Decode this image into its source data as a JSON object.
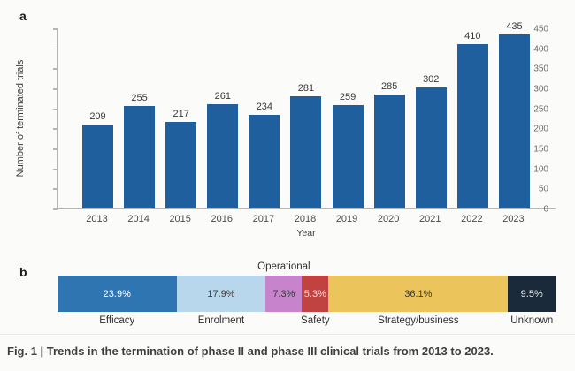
{
  "figure": {
    "panel_a_label": "a",
    "panel_b_label": "b",
    "caption": "Fig. 1 | Trends in the termination of phase II and phase III clinical trials from 2013 to 2023."
  },
  "colors": {
    "panel_a_bar": "#1f5f9d",
    "axis": "#b5b5b5",
    "caption_text": "#3f3f3f"
  },
  "chart_data": [
    {
      "type": "bar",
      "title": "",
      "xlabel": "Year",
      "ylabel": "Number of terminated trials",
      "categories": [
        "2013",
        "2014",
        "2015",
        "2016",
        "2017",
        "2018",
        "2019",
        "2020",
        "2021",
        "2022",
        "2023"
      ],
      "values": [
        209,
        255,
        217,
        261,
        234,
        281,
        259,
        285,
        302,
        410,
        435
      ],
      "ylim": [
        0,
        450
      ],
      "ytick_step": 50,
      "ytick_labels": [
        "0",
        "50",
        "100",
        "150",
        "200",
        "250",
        "300",
        "350",
        "400",
        "450"
      ],
      "bar_color": "#1f5f9d",
      "grid": false,
      "legend_position": "none",
      "data_labels_shown": true
    },
    {
      "type": "stacked-bar",
      "orientation": "horizontal",
      "title": "",
      "segments": [
        {
          "label": "Efficacy",
          "value_pct": 23.9,
          "display": "23.9%",
          "color": "#2e75b2",
          "text_color": "#ffffff",
          "label_position": "below"
        },
        {
          "label": "Enrolment",
          "value_pct": 17.9,
          "display": "17.9%",
          "color": "#b9d7ec",
          "text_color": "#3a3a3a",
          "label_position": "below"
        },
        {
          "label": "Operational",
          "value_pct": 7.3,
          "display": "7.3%",
          "color": "#c783cc",
          "text_color": "#3a3a3a",
          "label_position": "above"
        },
        {
          "label": "Safety",
          "value_pct": 5.3,
          "display": "5.3%",
          "color": "#c14341",
          "text_color": "#f2dad9",
          "label_position": "below"
        },
        {
          "label": "Strategy/business",
          "value_pct": 36.1,
          "display": "36.1%",
          "color": "#ecc45c",
          "text_color": "#3a3a3a",
          "label_position": "below"
        },
        {
          "label": "Unknown",
          "value_pct": 9.5,
          "display": "9.5%",
          "color": "#1b2a3b",
          "text_color": "#e9edf1",
          "label_position": "below"
        }
      ]
    }
  ]
}
